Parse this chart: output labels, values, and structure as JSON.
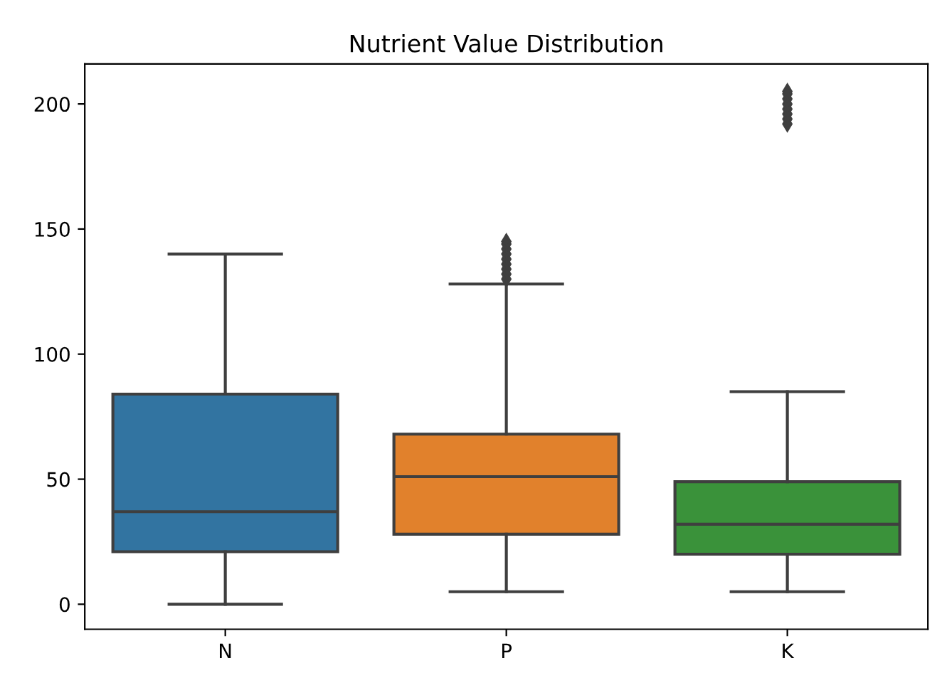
{
  "chart_data": {
    "type": "box",
    "title": "Nutrient Value Distribution",
    "categories": [
      "N",
      "P",
      "K"
    ],
    "colors": [
      "#3274a1",
      "#e1812c",
      "#3a923a"
    ],
    "boxes": [
      {
        "low": 0,
        "q1": 21,
        "median": 37,
        "q3": 84,
        "high": 140
      },
      {
        "low": 5,
        "q1": 28,
        "median": 51,
        "q3": 68,
        "high": 128,
        "outliers": [
          130,
          132,
          134,
          136,
          138,
          140,
          142,
          144,
          145
        ]
      },
      {
        "low": 5,
        "q1": 20,
        "median": 32,
        "q3": 49,
        "high": 85,
        "outliers": [
          192,
          194,
          196,
          198,
          200,
          202,
          204,
          205
        ]
      }
    ],
    "marker": "diamond",
    "ylim": [
      -10,
      216
    ],
    "yticks": [
      0,
      50,
      100,
      150,
      200
    ],
    "grid": false
  }
}
